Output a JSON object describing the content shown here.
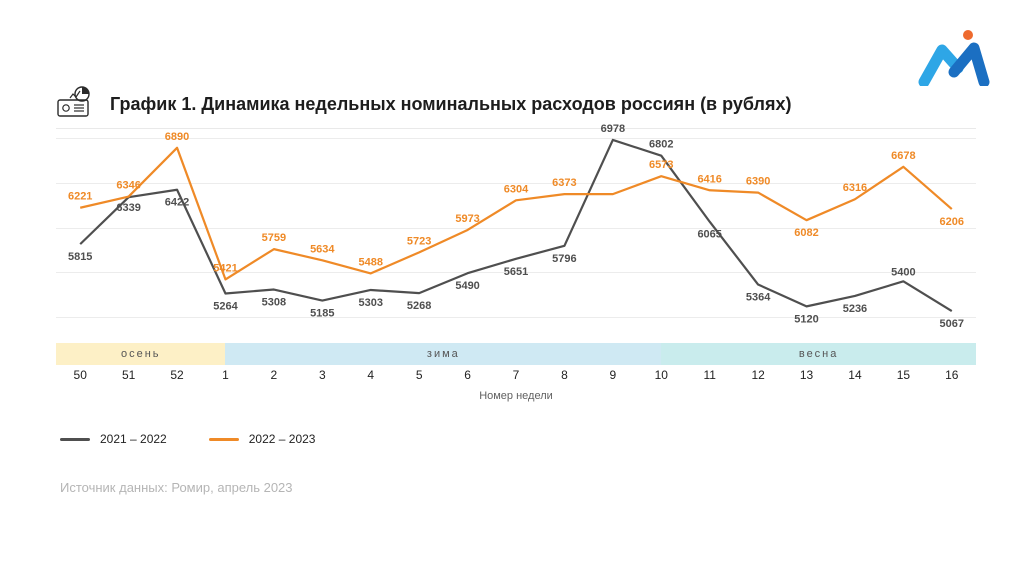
{
  "title": "График 1. Динамика недельных номинальных расходов россиян (в рублях)",
  "x_axis_label": "Номер недели",
  "source": "Источник данных: Ромир, апрель 2023",
  "legend": {
    "series_a_label": "2021 ‒ 2022",
    "series_b_label": "2022 ‒ 2023"
  },
  "chart": {
    "type": "line",
    "ymin": 4700,
    "ymax": 7100,
    "grid_lines": [
      5000,
      5500,
      6000,
      6500,
      7000
    ],
    "background_color": "#ffffff",
    "grid_color": "#ececec",
    "categories": [
      "50",
      "51",
      "52",
      "1",
      "2",
      "3",
      "4",
      "5",
      "6",
      "7",
      "8",
      "9",
      "10",
      "11",
      "12",
      "13",
      "14",
      "15",
      "16"
    ],
    "series": [
      {
        "name": "2021-2022",
        "color": "#4f4f4f",
        "width": 2.2,
        "values": [
          5815,
          6339,
          6422,
          5264,
          5308,
          5185,
          5303,
          5268,
          5490,
          5651,
          5796,
          6978,
          6802,
          6065,
          5364,
          5120,
          5236,
          5400,
          5067
        ],
        "label_dy": [
          16,
          14,
          16,
          16,
          16,
          16,
          16,
          16,
          16,
          16,
          16,
          -8,
          -8,
          16,
          16,
          16,
          16,
          -6,
          16
        ]
      },
      {
        "name": "2022-2023",
        "color": "#ef8a27",
        "width": 2.2,
        "values": [
          6221,
          6346,
          6890,
          5421,
          5759,
          5634,
          5488,
          5723,
          5973,
          6304,
          6373,
          6373,
          6573,
          6416,
          6390,
          6082,
          6316,
          6678,
          6206
        ],
        "label_dy": [
          -8,
          -8,
          -8,
          -8,
          -8,
          -8,
          -8,
          -8,
          -8,
          -8,
          -8,
          -20,
          -8,
          -8,
          -8,
          16,
          -8,
          -8,
          16
        ],
        "label_suppress": [
          11
        ]
      }
    ],
    "seasons": [
      {
        "label": "осень",
        "span": 3.5,
        "color": "#fdf0c6"
      },
      {
        "label": "зима",
        "span": 9.0,
        "color": "#cfe9f3"
      },
      {
        "label": "весна",
        "span": 6.5,
        "color": "#c9eced"
      }
    ]
  },
  "logo": {
    "dot_color": "#ee6a2e",
    "left_color": "#2ea6e6",
    "right_color": "#1b6fc2"
  }
}
